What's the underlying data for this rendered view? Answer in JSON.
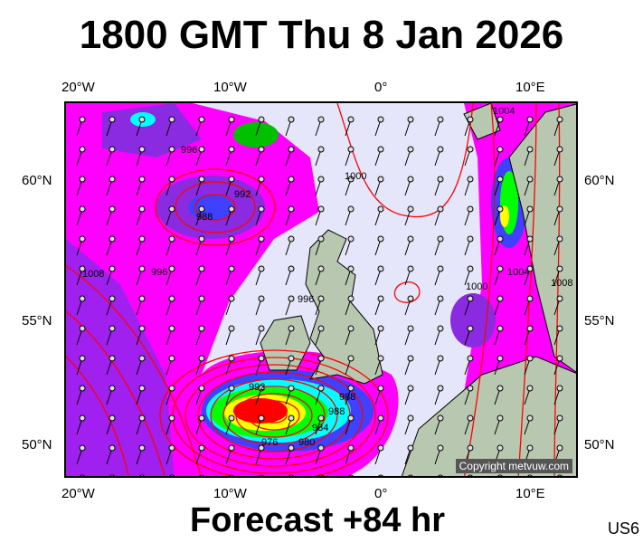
{
  "title": "1800 GMT Thu 8 Jan 2026",
  "footer": "Forecast +84 hr",
  "region_code": "US6",
  "copyright": "Copyright metvuw.com",
  "axes": {
    "top_lon_labels": [
      "20°W",
      "10°W",
      "0°",
      "10°E"
    ],
    "bottom_lon_labels": [
      "20°W",
      "10°W",
      "0°",
      "10°E"
    ],
    "left_lat_labels": [
      "60°N",
      "55°N",
      "50°N"
    ],
    "right_lat_labels": [
      "60°N",
      "55°N",
      "50°N"
    ]
  },
  "isobar_labels": [
    "1004",
    "996",
    "992",
    "988",
    "1000",
    "1008",
    "996",
    "996",
    "1000",
    "1004",
    "1008",
    "992",
    "988",
    "988",
    "984",
    "980",
    "976"
  ],
  "colors": {
    "background": "#e6e6fa",
    "precip_light": "#ff00ff",
    "precip_mid": "#8000ff",
    "precip_high": "#00ff00",
    "precip_peak": "#ff0000",
    "isobar": "#ff0000",
    "land": "#b8c8b0"
  }
}
